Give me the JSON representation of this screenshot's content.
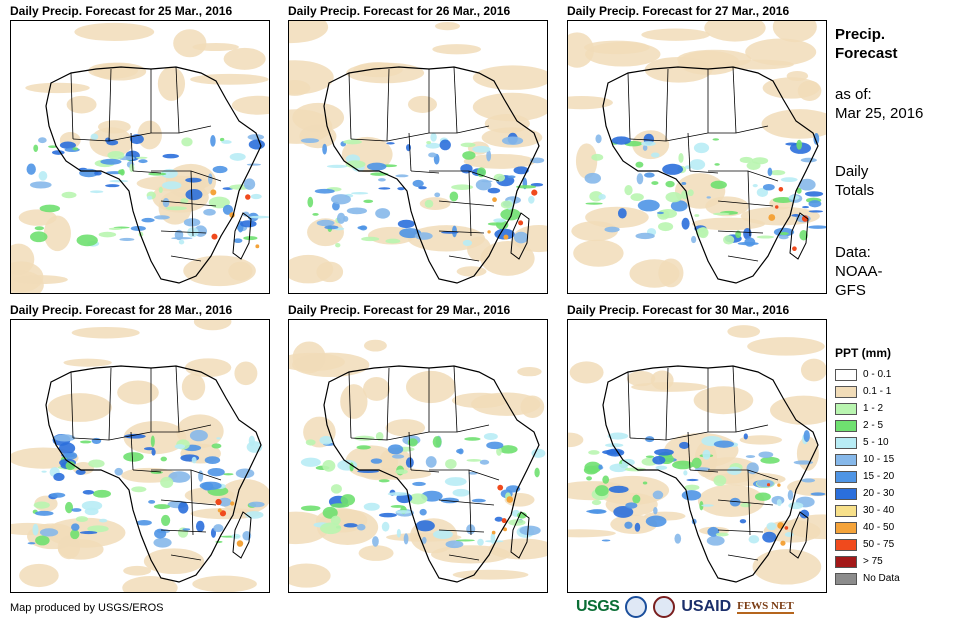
{
  "panels": [
    {
      "title": "Daily Precip. Forecast for 25 Mar., 2016"
    },
    {
      "title": "Daily Precip. Forecast for 26 Mar., 2016"
    },
    {
      "title": "Daily Precip. Forecast for 27 Mar., 2016"
    },
    {
      "title": "Daily Precip. Forecast for 28 Mar., 2016"
    },
    {
      "title": "Daily Precip. Forecast for 29 Mar., 2016"
    },
    {
      "title": "Daily Precip. Forecast for 30 Mar., 2016"
    }
  ],
  "sidebar": {
    "heading_line1": "Precip.",
    "heading_line2": "Forecast",
    "asof_label": "as of:",
    "asof_date": "Mar 25, 2016",
    "totals_line1": "Daily",
    "totals_line2": "Totals",
    "data_line1": "Data:",
    "data_line2": "NOAA-",
    "data_line3": "GFS"
  },
  "legend": {
    "title": "PPT (mm)",
    "items": [
      {
        "label": "0 - 0.1",
        "color": "#ffffff"
      },
      {
        "label": "0.1 - 1",
        "color": "#f1dcb8"
      },
      {
        "label": "1 - 2",
        "color": "#b9f5b0"
      },
      {
        "label": "2 - 5",
        "color": "#6fe070"
      },
      {
        "label": "5 - 10",
        "color": "#b8ecf5"
      },
      {
        "label": "10 - 15",
        "color": "#86b8ea"
      },
      {
        "label": "15 - 20",
        "color": "#4f95e5"
      },
      {
        "label": "20 - 30",
        "color": "#2b6fdc"
      },
      {
        "label": "30 - 40",
        "color": "#f7e08a"
      },
      {
        "label": "40 - 50",
        "color": "#f4a33a"
      },
      {
        "label": "50 - 75",
        "color": "#f04a1d"
      },
      {
        "label": "> 75",
        "color": "#a31818"
      },
      {
        "label": "No Data",
        "color": "#8c8c8c"
      }
    ]
  },
  "footer": {
    "credit": "Map produced by USGS/EROS",
    "logo_usgs": "USGS",
    "logo_usaid": "USAID",
    "logo_fews": "FEWS NET"
  }
}
